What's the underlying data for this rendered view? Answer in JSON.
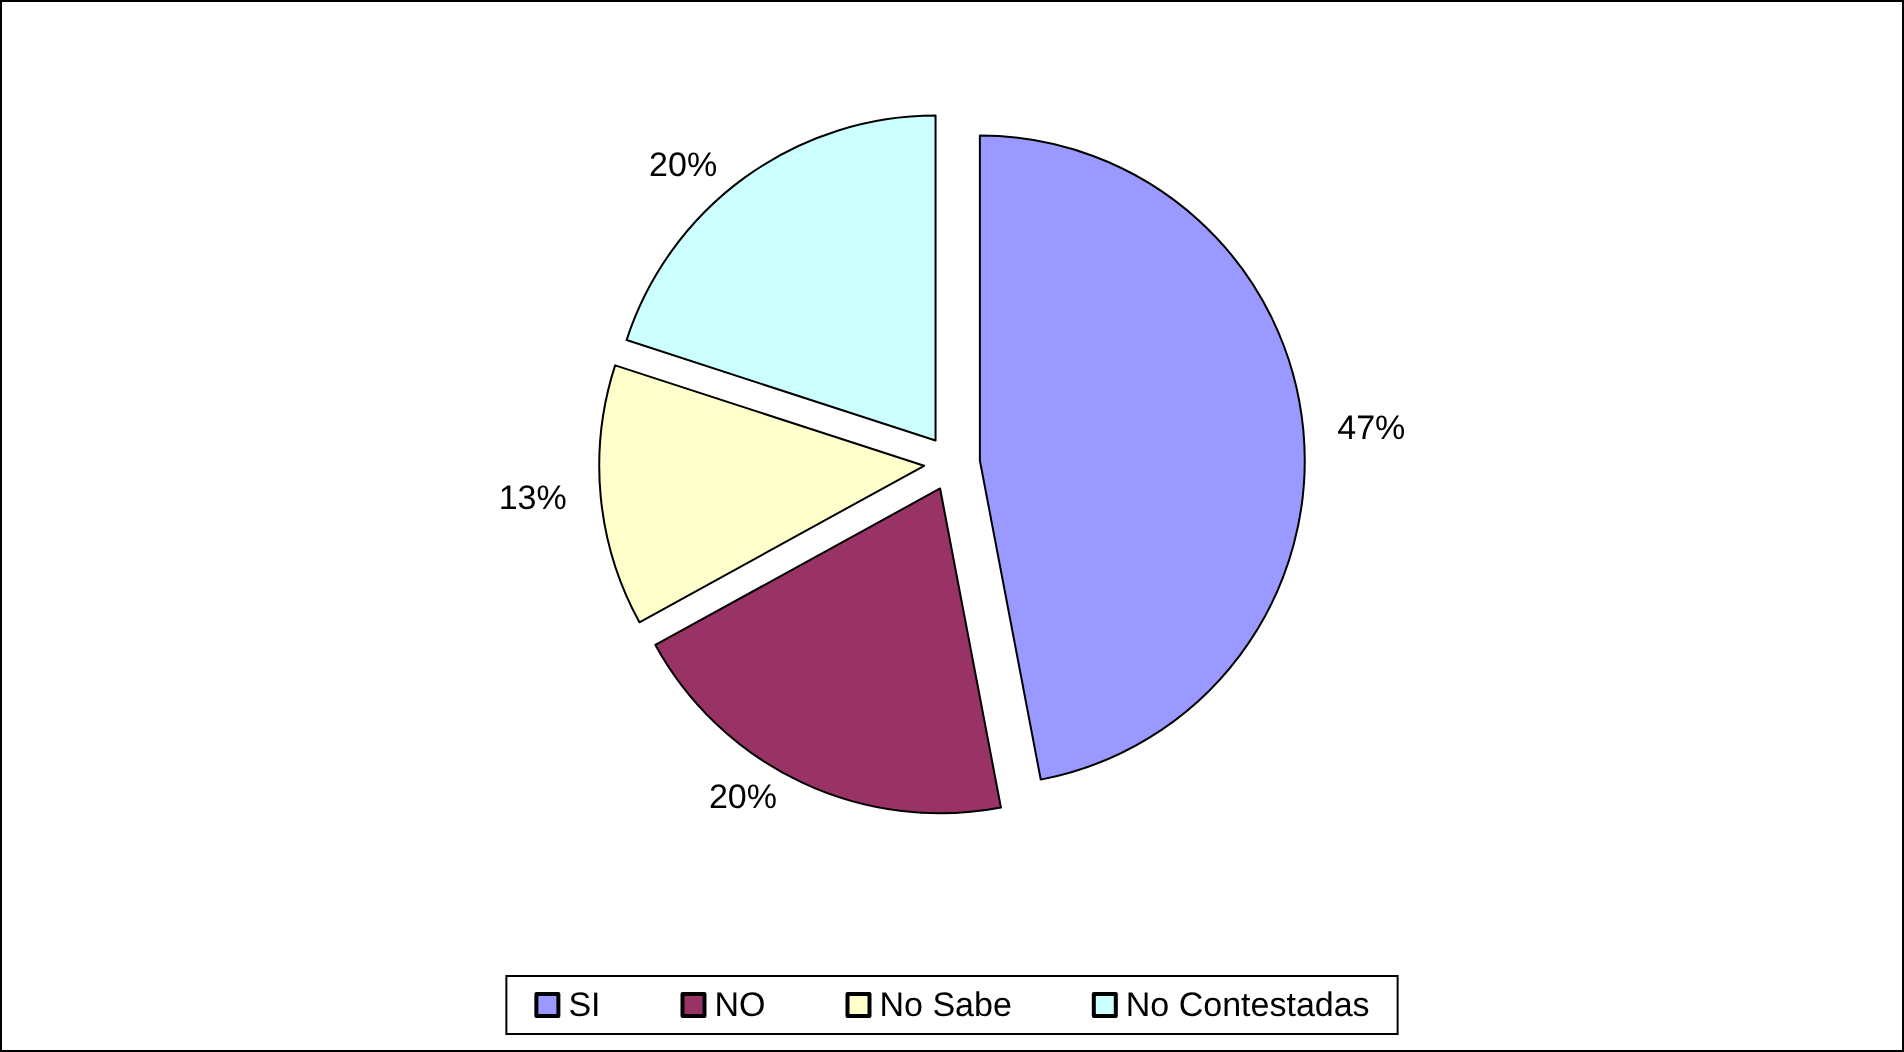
{
  "chart_data": {
    "type": "pie",
    "categories": [
      "SI",
      "NO",
      "No Sabe",
      "No Contestadas"
    ],
    "values": [
      47,
      20,
      13,
      20
    ],
    "value_labels": [
      "47%",
      "20%",
      "13%",
      "20%"
    ],
    "colors": [
      "#9999ff",
      "#993366",
      "#ffffcc",
      "#ccffff"
    ],
    "legend": "bottom"
  }
}
